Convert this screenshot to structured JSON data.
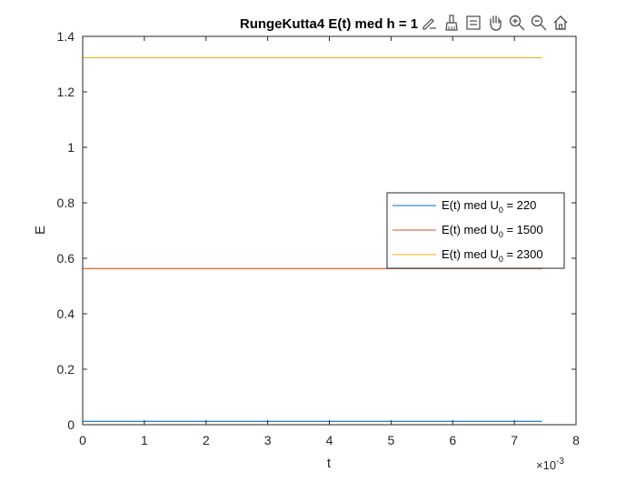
{
  "chart_data": {
    "type": "line",
    "title": "RungeKutta4 E(t) med h = 1",
    "xlabel": "t",
    "ylabel": "E",
    "x_multiplier": "×10",
    "x_multiplier_exp": "-3",
    "xlim": [
      0,
      8
    ],
    "ylim": [
      0,
      1.4
    ],
    "xticks": [
      0,
      1,
      2,
      3,
      4,
      5,
      6,
      7,
      8
    ],
    "yticks": [
      0,
      0.2,
      0.4,
      0.6,
      0.8,
      1,
      1.2,
      1.4
    ],
    "ytick_labels": [
      "0",
      "0.2",
      "0.4",
      "0.6",
      "0.8",
      "1",
      "1.2",
      "1.4"
    ],
    "grid": false,
    "legend_position": "right",
    "series": [
      {
        "name_prefix": "E(t) med U",
        "name_sub": "0",
        "name_suffix": " = 220",
        "color": "#0072BD",
        "x": [
          0,
          7.45
        ],
        "y": [
          0.012,
          0.012
        ]
      },
      {
        "name_prefix": "E(t) med U",
        "name_sub": "0",
        "name_suffix": " = 1500",
        "color": "#D95319",
        "x": [
          0,
          7.45
        ],
        "y": [
          0.563,
          0.563
        ]
      },
      {
        "name_prefix": "E(t) med U",
        "name_sub": "0",
        "name_suffix": " = 2300",
        "color": "#EDB120",
        "x": [
          0,
          7.45
        ],
        "y": [
          1.323,
          1.323
        ]
      }
    ]
  },
  "toolbar": {
    "icons": [
      "edit-plot-icon",
      "brush-icon",
      "data-cursor-icon",
      "pan-hand-icon",
      "zoom-in-icon",
      "zoom-out-icon",
      "home-icon"
    ]
  }
}
